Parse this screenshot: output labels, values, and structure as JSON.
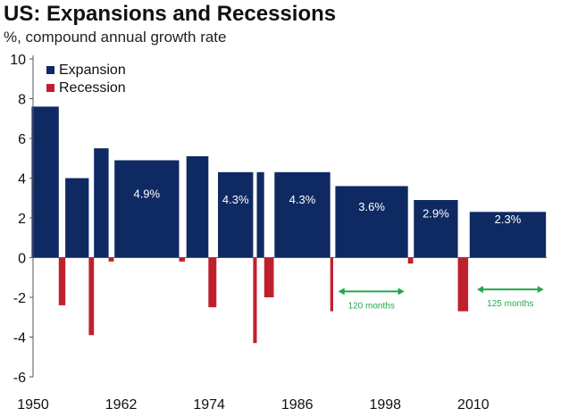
{
  "title": "US: Expansions and Recessions",
  "subtitle": "%, compound annual growth rate",
  "colors": {
    "expansion": "#0f2a63",
    "recession": "#c0202d",
    "annotation": "#22a84a",
    "axis": "#555555"
  },
  "chart_data": {
    "type": "bar",
    "title": "US: Expansions and Recessions",
    "subtitle": "%, compound annual growth rate",
    "xlabel": "",
    "ylabel": "%, compound annual growth rate",
    "xlim": [
      1950,
      2020
    ],
    "ylim": [
      -6,
      10
    ],
    "yticks": [
      -6,
      -4,
      -2,
      0,
      2,
      4,
      6,
      8,
      10
    ],
    "xticks": [
      1950,
      1962,
      1974,
      1986,
      1998,
      2010
    ],
    "grid": false,
    "legend": {
      "position": "top-left",
      "entries": [
        "Expansion",
        "Recession"
      ]
    },
    "series": [
      {
        "name": "Expansion",
        "bars": [
          {
            "start": 1949.8,
            "end": 1953.5,
            "value": 7.6,
            "label": ""
          },
          {
            "start": 1954.4,
            "end": 1957.6,
            "value": 4.0,
            "label": ""
          },
          {
            "start": 1958.3,
            "end": 1960.3,
            "value": 5.5,
            "label": ""
          },
          {
            "start": 1961.1,
            "end": 1969.9,
            "value": 4.9,
            "label": "4.9%"
          },
          {
            "start": 1970.9,
            "end": 1973.9,
            "value": 5.1,
            "label": ""
          },
          {
            "start": 1975.2,
            "end": 1980.0,
            "value": 4.3,
            "label": "4.3%"
          },
          {
            "start": 1980.5,
            "end": 1981.5,
            "value": 4.3,
            "label": ""
          },
          {
            "start": 1982.9,
            "end": 1990.5,
            "value": 4.3,
            "label": "4.3%"
          },
          {
            "start": 1991.2,
            "end": 2001.1,
            "value": 3.6,
            "label": "3.6%"
          },
          {
            "start": 2001.9,
            "end": 2007.9,
            "value": 2.9,
            "label": "2.9%"
          },
          {
            "start": 2009.5,
            "end": 2019.9,
            "value": 2.3,
            "label": "2.3%"
          }
        ]
      },
      {
        "name": "Recession",
        "bars": [
          {
            "start": 1953.5,
            "end": 1954.4,
            "value": -2.4
          },
          {
            "start": 1957.6,
            "end": 1958.3,
            "value": -3.9
          },
          {
            "start": 1960.3,
            "end": 1961.0,
            "value": -0.2
          },
          {
            "start": 1969.9,
            "end": 1970.7,
            "value": -0.2
          },
          {
            "start": 1973.9,
            "end": 1975.0,
            "value": -2.5
          },
          {
            "start": 1980.0,
            "end": 1980.5,
            "value": -4.3
          },
          {
            "start": 1981.5,
            "end": 1982.8,
            "value": -2.0
          },
          {
            "start": 1990.5,
            "end": 1990.9,
            "value": -2.7
          },
          {
            "start": 2001.1,
            "end": 2001.8,
            "value": -0.3
          },
          {
            "start": 2007.9,
            "end": 2009.3,
            "value": -2.7
          }
        ]
      }
    ],
    "annotations": [
      {
        "label": "120 months",
        "x_start": 1991.6,
        "x_end": 2000.6,
        "y": -1.7
      },
      {
        "label": "125 months",
        "x_start": 2010.5,
        "x_end": 2019.6,
        "y": -1.6
      }
    ]
  }
}
